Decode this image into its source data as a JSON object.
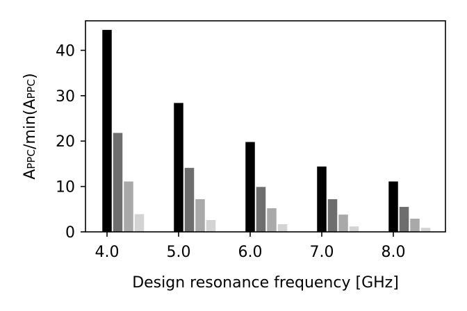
{
  "chart_data": {
    "type": "bar",
    "title": "",
    "xlabel": "Design resonance frequency [GHz]",
    "ylabel": {
      "main": "A",
      "sub": "PPC",
      "mid": "/min(A",
      "sub2": "PPC",
      "end": ")"
    },
    "categories": [
      "4.0",
      "5.0",
      "6.0",
      "7.0",
      "8.0"
    ],
    "yticks": [
      "0",
      "10",
      "20",
      "30",
      "40"
    ],
    "ylim": [
      0,
      46.5
    ],
    "grid": false,
    "legend": "none",
    "series": [
      {
        "color": "#000000",
        "values": [
          44.5,
          28.4,
          19.8,
          14.4,
          11.1
        ]
      },
      {
        "color": "#6e6e6e",
        "values": [
          21.8,
          14.1,
          9.9,
          7.2,
          5.5
        ]
      },
      {
        "color": "#a9a9a9",
        "values": [
          11.1,
          7.2,
          5.2,
          3.8,
          2.9
        ]
      },
      {
        "color": "#d3d3d3",
        "values": [
          3.9,
          2.6,
          1.7,
          1.2,
          0.9
        ]
      }
    ]
  }
}
